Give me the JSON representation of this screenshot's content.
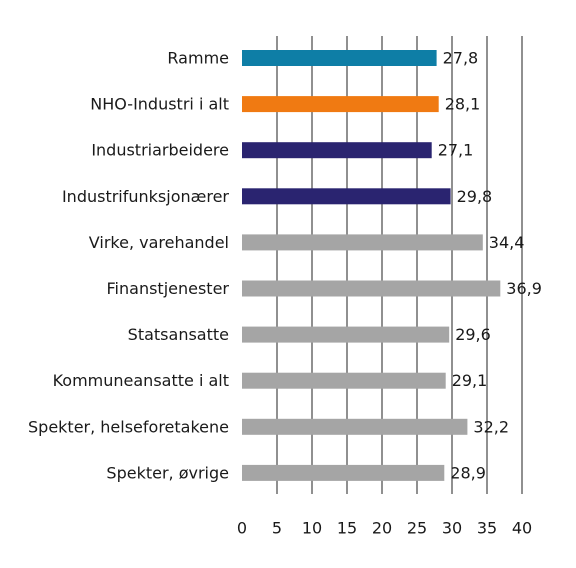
{
  "chart_data": {
    "type": "bar",
    "orientation": "horizontal",
    "categories": [
      "Ramme",
      "NHO-Industri i alt",
      "Industriarbeidere",
      "Industrifunksjonærer",
      "Virke, varehandel",
      "Finanstjenester",
      "Statsansatte",
      "Kommuneansatte i alt",
      "Spekter, helseforetakene",
      "Spekter, øvrige"
    ],
    "values": [
      27.8,
      28.1,
      27.1,
      29.8,
      34.4,
      36.9,
      29.6,
      29.1,
      32.2,
      28.9
    ],
    "value_labels": [
      "27,8",
      "28,1",
      "27,1",
      "29,8",
      "34,4",
      "36,9",
      "29,6",
      "29,1",
      "32,2",
      "28,9"
    ],
    "colors": [
      "#0e7ea6",
      "#f07a12",
      "#2a2470",
      "#2a2470",
      "#a5a5a5",
      "#a5a5a5",
      "#a5a5a5",
      "#a5a5a5",
      "#a5a5a5",
      "#a5a5a5"
    ],
    "xlim": [
      0,
      40
    ],
    "xticks": [
      0,
      5,
      10,
      15,
      20,
      25,
      30,
      35,
      40
    ],
    "grid": "vertical",
    "title": "",
    "xlabel": "",
    "ylabel": ""
  }
}
